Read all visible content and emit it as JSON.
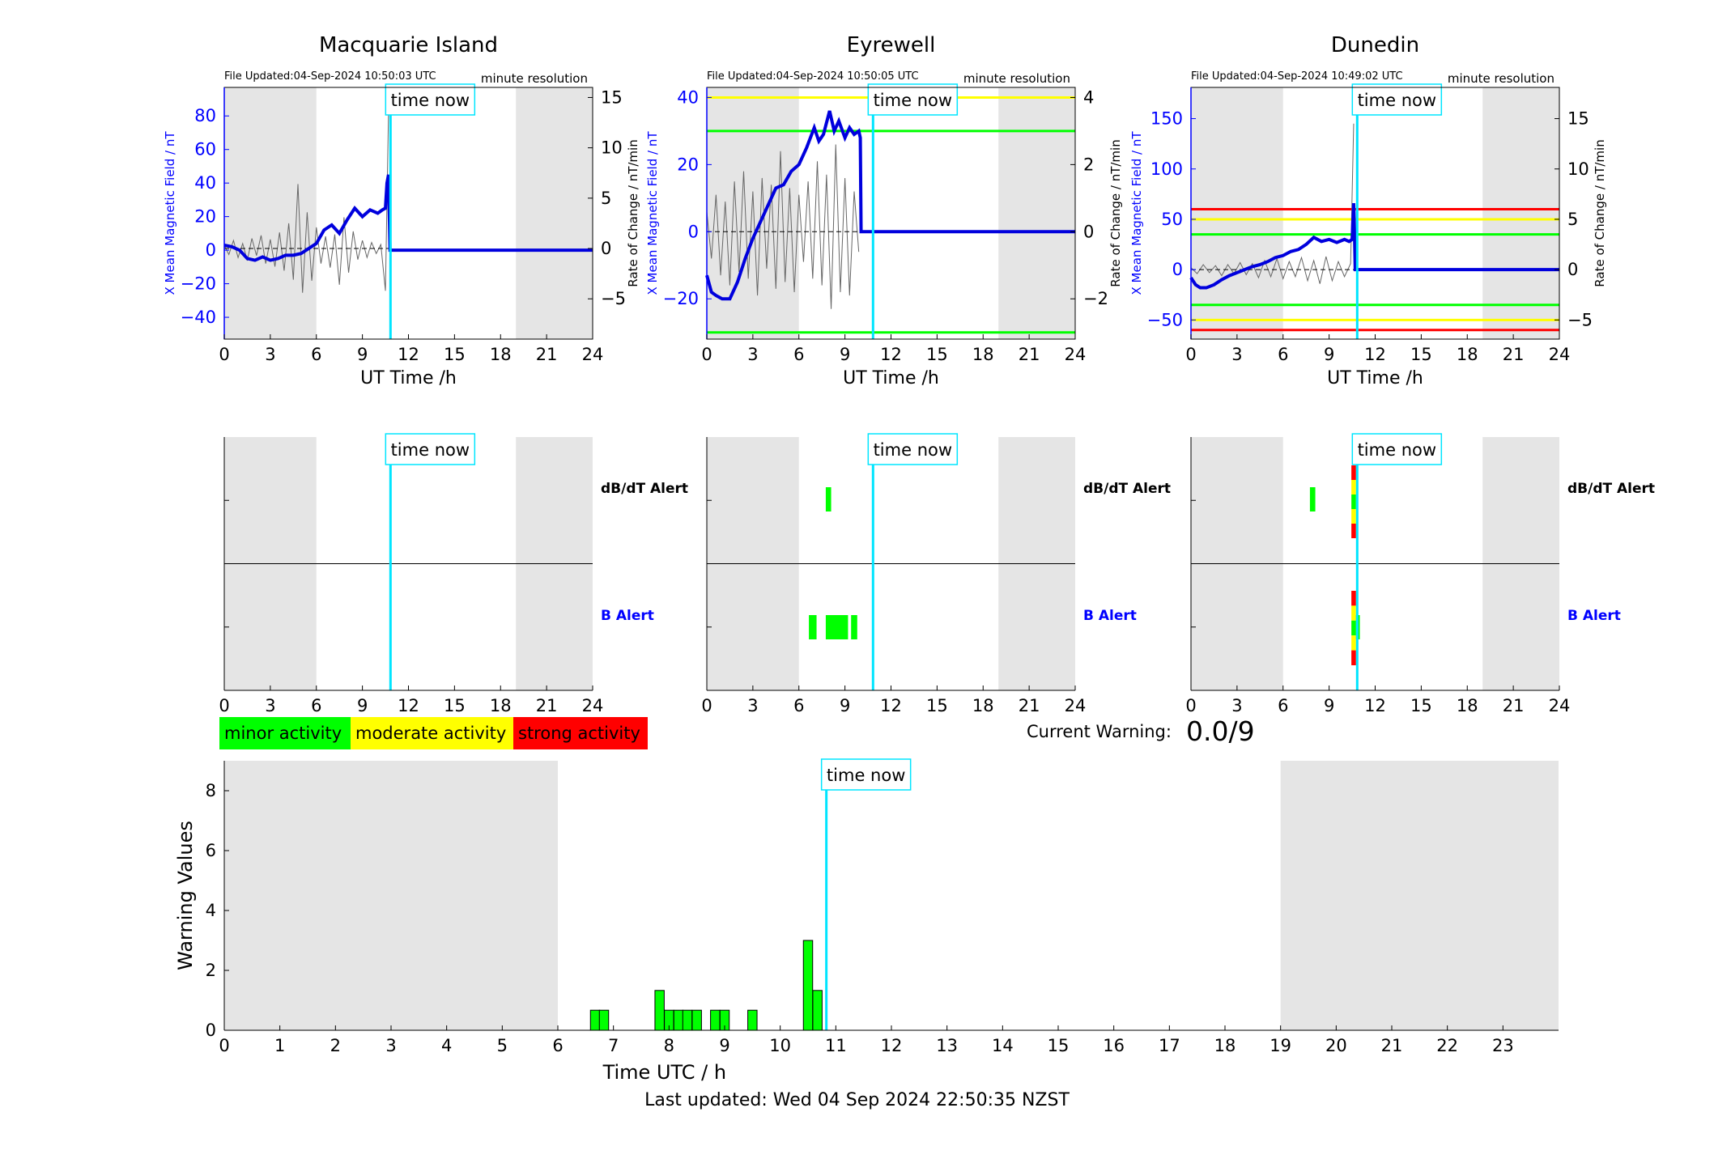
{
  "colors": {
    "shade": "#e5e5e5",
    "b_series": "#0000dd",
    "rate_series": "#666666",
    "time_now_line": "#00e5ff",
    "minor": "#00ff00",
    "moderate": "#ffff00",
    "strong": "#ff0000",
    "axis_left_blue": "#0000ff",
    "alert_b_label": "#0000ff"
  },
  "time_now_label": "time now",
  "time_now_hour": 10.83,
  "night_shading_hours": [
    [
      0,
      6
    ],
    [
      19,
      24
    ]
  ],
  "legend": {
    "minor": "minor activity",
    "moderate": "moderate activity",
    "strong": "strong activity"
  },
  "current_warning": {
    "label": "Current Warning:",
    "value": "0.0/9"
  },
  "footer": "Last updated: Wed 04 Sep 2024 22:50:35 NZST",
  "chart_data": [
    {
      "type": "line",
      "title": "Macquarie Island",
      "file_updated": "File Updated:04-Sep-2024 10:50:03 UTC",
      "resolution": "minute resolution",
      "xlabel": "UT Time /h",
      "ylabel_left": "X Mean Magnetic Field / nT",
      "ylabel_right": "Rate of Change / nT/min",
      "xlim": [
        0,
        24
      ],
      "xticks": [
        0,
        3,
        6,
        9,
        12,
        15,
        18,
        21,
        24
      ],
      "ylim_left": [
        -53,
        97
      ],
      "yticks_left": [
        -40,
        -20,
        0,
        20,
        40,
        60,
        80
      ],
      "ylim_right": [
        -9,
        16
      ],
      "yticks_right": [
        -5,
        0,
        5,
        10,
        15
      ],
      "threshold_lines": [],
      "series": [
        {
          "axis": "left",
          "x": [
            0,
            0.5,
            1,
            1.5,
            2,
            2.5,
            3,
            3.5,
            4,
            4.5,
            5,
            5.5,
            6,
            6.5,
            7,
            7.5,
            8,
            8.5,
            9,
            9.5,
            10,
            10.3,
            10.5,
            10.6,
            10.7,
            10.8,
            11,
            24
          ],
          "y": [
            3,
            2,
            0,
            -5,
            -6,
            -4,
            -6,
            -5,
            -3,
            -3,
            -2,
            1,
            4,
            12,
            15,
            10,
            18,
            25,
            20,
            24,
            22,
            24,
            25,
            40,
            45,
            0,
            0,
            0
          ]
        },
        {
          "axis": "right",
          "name": "",
          "x": [
            0,
            0.3,
            0.6,
            0.9,
            1.2,
            1.5,
            1.8,
            2.1,
            2.4,
            2.7,
            3,
            3.3,
            3.6,
            3.9,
            4.2,
            4.5,
            4.8,
            5.1,
            5.4,
            5.7,
            6,
            6.3,
            6.6,
            6.9,
            7.2,
            7.5,
            7.8,
            8.1,
            8.4,
            8.7,
            9,
            9.3,
            9.6,
            9.9,
            10.2,
            10.5,
            10.7
          ],
          "y": [
            0.3,
            -0.6,
            0.8,
            -0.9,
            0.5,
            -1.2,
            1,
            -0.7,
            1.3,
            -1.5,
            0.9,
            -1.8,
            1.6,
            -2.2,
            2.5,
            -3.1,
            6.4,
            -4.4,
            3.6,
            -3.2,
            2.1,
            -1.5,
            1.2,
            -1.9,
            1.4,
            -3.6,
            3.1,
            -2.4,
            1.7,
            -1.1,
            0.8,
            -0.9,
            0.6,
            -0.5,
            0.4,
            -4.2,
            13.5
          ]
        }
      ]
    },
    {
      "type": "line",
      "title": "Eyrewell",
      "file_updated": "File Updated:04-Sep-2024 10:50:05 UTC",
      "resolution": "minute resolution",
      "xlabel": "UT Time /h",
      "ylabel_left": "X Mean Magnetic Field / nT",
      "ylabel_right": "Rate of Change / nT/min",
      "xlim": [
        0,
        24
      ],
      "xticks": [
        0,
        3,
        6,
        9,
        12,
        15,
        18,
        21,
        24
      ],
      "ylim_left": [
        -32,
        43
      ],
      "yticks_left": [
        -20,
        0,
        20,
        40
      ],
      "ylim_right": [
        -3.2,
        4.3
      ],
      "yticks_right": [
        -2,
        0,
        2,
        4
      ],
      "threshold_lines": [
        {
          "axis": "left",
          "value": 40,
          "level": "moderate"
        },
        {
          "axis": "left",
          "value": 30,
          "level": "minor"
        },
        {
          "axis": "left",
          "value": -30,
          "level": "minor"
        }
      ],
      "series": [
        {
          "axis": "left",
          "x": [
            0,
            0.3,
            0.6,
            1,
            1.5,
            2,
            2.5,
            3,
            3.5,
            4,
            4.5,
            5,
            5.5,
            6,
            6.5,
            7,
            7.3,
            7.6,
            8,
            8.3,
            8.6,
            9,
            9.3,
            9.6,
            9.9,
            10,
            10.05,
            24
          ],
          "y": [
            -13,
            -18,
            -19,
            -20,
            -20,
            -15,
            -8,
            -2,
            3,
            8,
            13,
            14,
            18,
            20,
            25,
            31,
            27,
            29,
            36,
            30,
            33,
            28,
            31,
            29,
            30,
            28,
            0,
            0
          ]
        },
        {
          "axis": "right",
          "x": [
            0,
            0.3,
            0.6,
            0.9,
            1.2,
            1.5,
            1.8,
            2.1,
            2.4,
            2.7,
            3,
            3.3,
            3.6,
            3.9,
            4.2,
            4.5,
            4.8,
            5.1,
            5.4,
            5.7,
            6,
            6.3,
            6.6,
            6.9,
            7.2,
            7.5,
            7.8,
            8.1,
            8.4,
            8.7,
            9,
            9.3,
            9.6,
            9.9
          ],
          "y": [
            0.6,
            -0.8,
            1.1,
            -1.3,
            0.9,
            -1.6,
            1.5,
            -1.2,
            1.8,
            -1.4,
            1.2,
            -1.9,
            1.6,
            -1.1,
            1.4,
            -1.7,
            2.4,
            -1.5,
            1.3,
            -1.8,
            1.1,
            -0.9,
            1.5,
            -1.4,
            2.1,
            -1.6,
            1.7,
            -2.3,
            2.6,
            -1.8,
            1.6,
            -1.9,
            1.2,
            -0.6
          ]
        }
      ]
    },
    {
      "type": "line",
      "title": "Dunedin",
      "file_updated": "File Updated:04-Sep-2024 10:49:02 UTC",
      "resolution": "minute resolution",
      "xlabel": "UT Time /h",
      "ylabel_left": "X Mean Magnetic Field / nT",
      "ylabel_right": "Rate of Change / nT/min",
      "xlim": [
        0,
        24
      ],
      "xticks": [
        0,
        3,
        6,
        9,
        12,
        15,
        18,
        21,
        24
      ],
      "ylim_left": [
        -69,
        181
      ],
      "yticks_left": [
        -50,
        0,
        50,
        100,
        150
      ],
      "ylim_right": [
        -6.9,
        18.1
      ],
      "yticks_right": [
        -5,
        0,
        5,
        10,
        15
      ],
      "threshold_lines": [
        {
          "axis": "left",
          "value": 60,
          "level": "strong"
        },
        {
          "axis": "left",
          "value": 50,
          "level": "moderate"
        },
        {
          "axis": "left",
          "value": 35,
          "level": "minor"
        },
        {
          "axis": "left",
          "value": -35,
          "level": "minor"
        },
        {
          "axis": "left",
          "value": -50,
          "level": "moderate"
        },
        {
          "axis": "left",
          "value": -60,
          "level": "strong"
        }
      ],
      "series": [
        {
          "axis": "left",
          "x": [
            0,
            0.3,
            0.6,
            1,
            1.5,
            2,
            2.5,
            3,
            3.5,
            4,
            4.5,
            5,
            5.5,
            6,
            6.5,
            7,
            7.5,
            8,
            8.5,
            9,
            9.5,
            10,
            10.3,
            10.5,
            10.6,
            10.65,
            10.7,
            10.8,
            24
          ],
          "y": [
            -8,
            -15,
            -18,
            -18,
            -15,
            -10,
            -6,
            -3,
            0,
            3,
            5,
            8,
            12,
            14,
            18,
            20,
            25,
            32,
            28,
            30,
            27,
            30,
            28,
            30,
            66,
            40,
            0,
            0,
            0
          ]
        },
        {
          "axis": "right",
          "x": [
            0,
            0.4,
            0.8,
            1.2,
            1.6,
            2,
            2.4,
            2.8,
            3.2,
            3.6,
            4,
            4.4,
            4.8,
            5.2,
            5.6,
            6,
            6.4,
            6.8,
            7.2,
            7.6,
            8,
            8.4,
            8.8,
            9.2,
            9.6,
            10,
            10.4,
            10.6
          ],
          "y": [
            0.2,
            -0.4,
            0.5,
            -0.3,
            0.4,
            -0.6,
            0.5,
            -0.4,
            0.7,
            -0.5,
            0.6,
            -0.8,
            0.9,
            -0.7,
            1.1,
            -0.9,
            0.8,
            -0.7,
            1.2,
            -1.1,
            0.9,
            -1.4,
            1.3,
            -1.1,
            0.8,
            -0.7,
            0.6,
            14.5
          ]
        }
      ]
    },
    {
      "type": "bar",
      "title": "",
      "panel": "alerts",
      "station": "Macquarie Island",
      "xlim": [
        0,
        24
      ],
      "xticks": [
        0,
        3,
        6,
        9,
        12,
        15,
        18,
        21,
        24
      ],
      "row_labels": {
        "dbdt": "dB/dT Alert",
        "b": "B Alert"
      },
      "dbdt_alerts": [],
      "b_alerts": []
    },
    {
      "type": "bar",
      "title": "",
      "panel": "alerts",
      "station": "Eyrewell",
      "xlim": [
        0,
        24
      ],
      "xticks": [
        0,
        3,
        6,
        9,
        12,
        15,
        18,
        21,
        24
      ],
      "row_labels": {
        "dbdt": "dB/dT Alert",
        "b": "B Alert"
      },
      "dbdt_alerts": [
        {
          "start": 7.75,
          "end": 8.1,
          "levels": [
            "minor"
          ]
        }
      ],
      "b_alerts": [
        {
          "start": 6.65,
          "end": 7.15,
          "levels": [
            "minor"
          ]
        },
        {
          "start": 7.75,
          "end": 9.2,
          "levels": [
            "minor"
          ]
        },
        {
          "start": 9.4,
          "end": 9.8,
          "levels": [
            "minor"
          ]
        }
      ]
    },
    {
      "type": "bar",
      "title": "",
      "panel": "alerts",
      "station": "Dunedin",
      "xlim": [
        0,
        24
      ],
      "xticks": [
        0,
        3,
        6,
        9,
        12,
        15,
        18,
        21,
        24
      ],
      "row_labels": {
        "dbdt": "dB/dT Alert",
        "b": "B Alert"
      },
      "dbdt_alerts": [
        {
          "start": 7.75,
          "end": 8.1,
          "levels": [
            "minor"
          ]
        },
        {
          "start": 10.45,
          "end": 10.75,
          "levels": [
            "strong",
            "moderate",
            "minor",
            "moderate",
            "strong"
          ]
        }
      ],
      "b_alerts": [
        {
          "start": 10.45,
          "end": 10.75,
          "levels": [
            "strong",
            "moderate",
            "minor",
            "moderate",
            "strong"
          ]
        },
        {
          "start": 10.75,
          "end": 11.0,
          "levels": [
            "minor"
          ]
        }
      ]
    },
    {
      "type": "bar",
      "title": "",
      "panel": "warnings",
      "xlabel": "Time UTC / h",
      "ylabel": "Warning Values",
      "xlim": [
        0,
        24
      ],
      "xticks": [
        0,
        1,
        2,
        3,
        4,
        5,
        6,
        7,
        8,
        9,
        10,
        11,
        12,
        13,
        14,
        15,
        16,
        17,
        18,
        19,
        20,
        21,
        22,
        23
      ],
      "ylim": [
        0,
        9
      ],
      "yticks": [
        0,
        2,
        4,
        6,
        8
      ],
      "bar_width_h": 0.1667,
      "x": [
        6.67,
        6.83,
        7.83,
        8.0,
        8.17,
        8.33,
        8.5,
        8.83,
        9.0,
        9.5,
        10.5,
        10.67
      ],
      "values": [
        0.67,
        0.67,
        1.33,
        0.67,
        0.67,
        0.67,
        0.67,
        0.67,
        0.67,
        0.67,
        3.0,
        1.33
      ]
    }
  ]
}
